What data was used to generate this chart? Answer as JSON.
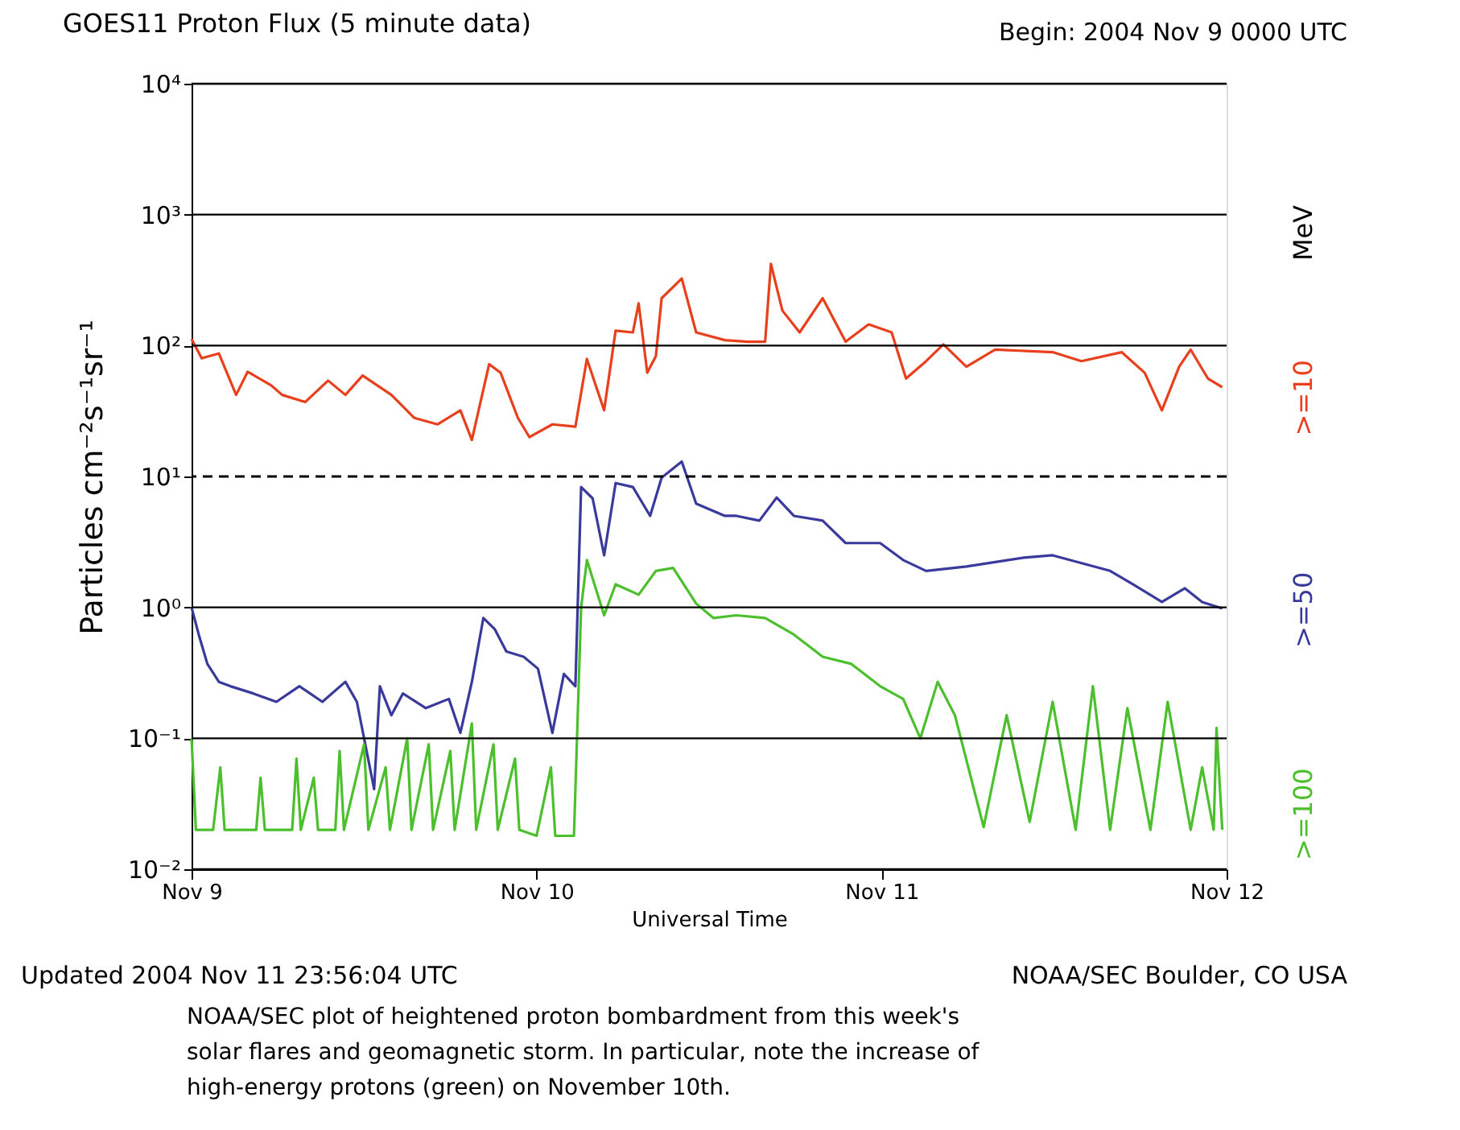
{
  "chart_data": {
    "type": "line",
    "title": "GOES11 Proton Flux (5 minute data)",
    "xlabel": "Universal Time",
    "ylabel": "Particles cm⁻²s⁻¹sr⁻¹",
    "legend_title": "MeV",
    "legend": "right",
    "log": "y",
    "grid": "y",
    "line_style": "solid",
    "marker": "none",
    "xlim": [
      "2004-11-09",
      "2004-11-12"
    ],
    "xticks": [
      {
        "value": "2004-11-09",
        "label": "Nov 9"
      },
      {
        "value": "2004-11-10",
        "label": "Nov 10"
      },
      {
        "value": "2004-11-11",
        "label": "Nov 11"
      },
      {
        "value": "2004-11-12",
        "label": "Nov 12"
      }
    ],
    "ylim": [
      0.01,
      10000
    ],
    "yticks": [
      {
        "value": 0.01,
        "label": "10⁻²"
      },
      {
        "value": 0.1,
        "label": "10⁻¹"
      },
      {
        "value": 1,
        "label": "10⁰"
      },
      {
        "value": 10,
        "label": "10¹"
      },
      {
        "value": 100,
        "label": "10²"
      },
      {
        "value": 1000,
        "label": "10³"
      },
      {
        "value": 10000,
        "label": "10⁴"
      }
    ],
    "ref_lines": [
      {
        "axis": "y",
        "value": 10,
        "line_style": "dashed",
        "color": "#000000"
      }
    ],
    "annotations": [
      "Begin: 2004 Nov 9 0000 UTC",
      "Updated 2004 Nov 11 23:56:04 UTC",
      "NOAA/SEC Boulder, CO USA",
      "NOAA/SEC plot of heightened proton bombardment from this week's",
      "solar flares and geomagnetic storm. In particular, note the increase of",
      "high-energy protons (green) on November 10th."
    ],
    "series": [
      {
        "name": ">=10",
        "color": "#e8401c",
        "x": [
          "2004-11-09T00:00",
          "2004-11-09T00:42",
          "2004-11-09T01:54",
          "2004-11-09T03:06",
          "2004-11-09T03:54",
          "2004-11-09T05:30",
          "2004-11-09T06:18",
          "2004-11-09T07:54",
          "2004-11-09T09:30",
          "2004-11-09T10:42",
          "2004-11-09T11:54",
          "2004-11-09T13:54",
          "2004-11-09T15:30",
          "2004-11-09T17:06",
          "2004-11-09T18:42",
          "2004-11-09T19:30",
          "2004-11-09T20:42",
          "2004-11-09T21:30",
          "2004-11-09T22:42",
          "2004-11-09T23:30",
          "2004-11-10T01:06",
          "2004-11-10T02:42",
          "2004-11-10T03:30",
          "2004-11-10T04:42",
          "2004-11-10T05:30",
          "2004-11-10T06:42",
          "2004-11-10T07:06",
          "2004-11-10T07:42",
          "2004-11-10T08:18",
          "2004-11-10T08:42",
          "2004-11-10T10:06",
          "2004-11-10T11:06",
          "2004-11-10T13:06",
          "2004-11-10T14:42",
          "2004-11-10T15:54",
          "2004-11-10T16:18",
          "2004-11-10T17:06",
          "2004-11-10T18:18",
          "2004-11-10T19:54",
          "2004-11-10T21:30",
          "2004-11-10T23:06",
          "2004-11-11T00:42",
          "2004-11-11T01:42",
          "2004-11-11T03:06",
          "2004-11-11T04:18",
          "2004-11-11T05:54",
          "2004-11-11T07:54",
          "2004-11-11T11:54",
          "2004-11-11T13:54",
          "2004-11-11T16:42",
          "2004-11-11T18:18",
          "2004-11-11T19:30",
          "2004-11-11T20:42",
          "2004-11-11T21:30",
          "2004-11-11T22:42",
          "2004-11-11T23:42"
        ],
        "values": [
          112,
          80,
          87,
          42,
          63,
          50,
          42,
          37,
          54,
          42,
          59,
          42,
          28,
          25,
          32,
          19,
          72,
          62,
          28,
          20,
          25,
          24,
          79,
          32,
          130,
          126,
          210,
          62,
          83,
          230,
          325,
          126,
          110,
          107,
          107,
          420,
          185,
          126,
          230,
          107,
          145,
          126,
          56,
          76,
          102,
          69,
          93,
          89,
          76,
          89,
          62,
          32,
          69,
          93,
          56,
          48
        ]
      },
      {
        "name": ">=50",
        "color": "#3a3a9c",
        "x": [
          "2004-11-09T00:00",
          "2004-11-09T00:30",
          "2004-11-09T01:06",
          "2004-11-09T01:54",
          "2004-11-09T02:42",
          "2004-11-09T04:18",
          "2004-11-09T05:54",
          "2004-11-09T07:30",
          "2004-11-09T09:06",
          "2004-11-09T10:42",
          "2004-11-09T11:30",
          "2004-11-09T12:42",
          "2004-11-09T13:06",
          "2004-11-09T13:54",
          "2004-11-09T14:42",
          "2004-11-09T16:18",
          "2004-11-09T17:54",
          "2004-11-09T18:42",
          "2004-11-09T19:30",
          "2004-11-09T20:18",
          "2004-11-09T21:06",
          "2004-11-09T21:54",
          "2004-11-09T23:06",
          "2004-11-10T00:06",
          "2004-11-10T01:06",
          "2004-11-10T01:54",
          "2004-11-10T02:42",
          "2004-11-10T03:06",
          "2004-11-10T03:54",
          "2004-11-10T04:42",
          "2004-11-10T05:30",
          "2004-11-10T06:42",
          "2004-11-10T07:54",
          "2004-11-10T08:42",
          "2004-11-10T10:06",
          "2004-11-10T11:06",
          "2004-11-10T13:06",
          "2004-11-10T13:54",
          "2004-11-10T15:30",
          "2004-11-10T16:42",
          "2004-11-10T17:54",
          "2004-11-10T19:54",
          "2004-11-10T21:30",
          "2004-11-10T23:54",
          "2004-11-11T01:30",
          "2004-11-11T03:06",
          "2004-11-11T05:54",
          "2004-11-11T09:54",
          "2004-11-11T11:54",
          "2004-11-11T15:54",
          "2004-11-11T17:30",
          "2004-11-11T19:30",
          "2004-11-11T21:06",
          "2004-11-11T22:18",
          "2004-11-11T23:42"
        ],
        "values": [
          1.0,
          0.62,
          0.37,
          0.27,
          0.25,
          0.22,
          0.19,
          0.25,
          0.19,
          0.27,
          0.19,
          0.041,
          0.25,
          0.15,
          0.22,
          0.17,
          0.2,
          0.11,
          0.27,
          0.83,
          0.68,
          0.46,
          0.42,
          0.34,
          0.11,
          0.31,
          0.25,
          8.3,
          6.8,
          2.5,
          8.9,
          8.3,
          5.0,
          9.8,
          13,
          6.2,
          5.0,
          5.0,
          4.6,
          6.9,
          5.0,
          4.6,
          3.1,
          3.1,
          2.3,
          1.9,
          2.05,
          2.4,
          2.5,
          1.9,
          1.5,
          1.1,
          1.4,
          1.1,
          0.98
        ]
      },
      {
        "name": ">=100",
        "color": "#4cc02c",
        "x": [
          "2004-11-09T00:00",
          "2004-11-09T00:18",
          "2004-11-09T01:30",
          "2004-11-09T02:00",
          "2004-11-09T02:18",
          "2004-11-09T04:30",
          "2004-11-09T04:48",
          "2004-11-09T05:06",
          "2004-11-09T07:00",
          "2004-11-09T07:18",
          "2004-11-09T07:36",
          "2004-11-09T08:30",
          "2004-11-09T08:48",
          "2004-11-09T10:00",
          "2004-11-09T10:18",
          "2004-11-09T10:36",
          "2004-11-09T12:00",
          "2004-11-09T12:18",
          "2004-11-09T13:30",
          "2004-11-09T13:48",
          "2004-11-09T15:00",
          "2004-11-09T15:18",
          "2004-11-09T16:30",
          "2004-11-09T16:48",
          "2004-11-09T18:00",
          "2004-11-09T18:18",
          "2004-11-09T19:30",
          "2004-11-09T19:48",
          "2004-11-09T21:00",
          "2004-11-09T21:18",
          "2004-11-09T22:30",
          "2004-11-09T22:48",
          "2004-11-10T00:00",
          "2004-11-10T01:00",
          "2004-11-10T01:18",
          "2004-11-10T02:36",
          "2004-11-10T03:06",
          "2004-11-10T03:30",
          "2004-11-10T04:42",
          "2004-11-10T05:30",
          "2004-11-10T07:06",
          "2004-11-10T08:18",
          "2004-11-10T09:30",
          "2004-11-10T11:06",
          "2004-11-10T12:18",
          "2004-11-10T13:54",
          "2004-11-10T15:54",
          "2004-11-10T17:54",
          "2004-11-10T19:54",
          "2004-11-10T21:54",
          "2004-11-10T23:54",
          "2004-11-11T01:30",
          "2004-11-11T02:42",
          "2004-11-11T03:54",
          "2004-11-11T05:06",
          "2004-11-11T07:06",
          "2004-11-11T08:42",
          "2004-11-11T10:18",
          "2004-11-11T11:54",
          "2004-11-11T13:30",
          "2004-11-11T14:42",
          "2004-11-11T15:54",
          "2004-11-11T17:06",
          "2004-11-11T18:42",
          "2004-11-11T19:54",
          "2004-11-11T21:30",
          "2004-11-11T22:18",
          "2004-11-11T23:06",
          "2004-11-11T23:18",
          "2004-11-11T23:42"
        ],
        "values": [
          0.1,
          0.02,
          0.02,
          0.06,
          0.02,
          0.02,
          0.05,
          0.02,
          0.02,
          0.07,
          0.02,
          0.05,
          0.02,
          0.02,
          0.08,
          0.02,
          0.09,
          0.02,
          0.06,
          0.02,
          0.1,
          0.02,
          0.09,
          0.02,
          0.08,
          0.02,
          0.13,
          0.02,
          0.09,
          0.02,
          0.07,
          0.02,
          0.018,
          0.06,
          0.018,
          0.018,
          1.0,
          2.3,
          0.87,
          1.5,
          1.25,
          1.9,
          2.0,
          1.07,
          0.83,
          0.87,
          0.83,
          0.62,
          0.42,
          0.37,
          0.25,
          0.2,
          0.1,
          0.27,
          0.15,
          0.021,
          0.15,
          0.023,
          0.19,
          0.02,
          0.25,
          0.02,
          0.17,
          0.02,
          0.19,
          0.02,
          0.06,
          0.02,
          0.12,
          0.02
        ]
      }
    ]
  }
}
